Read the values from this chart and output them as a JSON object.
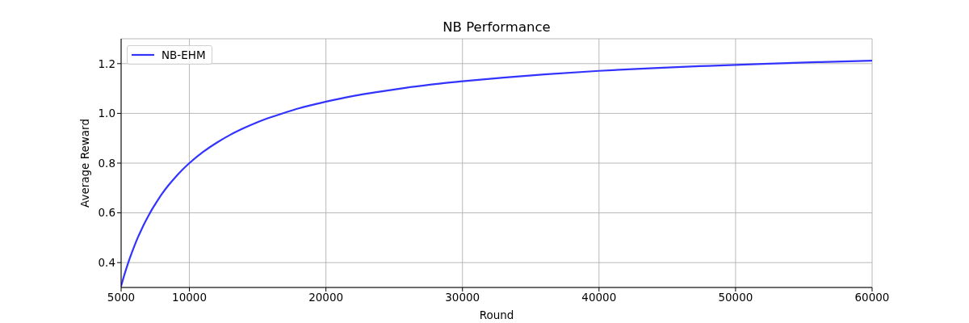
{
  "chart_data": {
    "type": "line",
    "title": "NB Performance",
    "xlabel": "Round",
    "ylabel": "Average Reward",
    "x": [
      5000,
      5250,
      5500,
      5750,
      6000,
      6250,
      6500,
      6750,
      7000,
      7250,
      7500,
      8000,
      8500,
      9000,
      9500,
      10000,
      11000,
      12000,
      13000,
      14000,
      15000,
      16000,
      17000,
      18000,
      20000,
      22000,
      24000,
      26000,
      28000,
      30000,
      33000,
      36000,
      40000,
      44000,
      48000,
      52000,
      56000,
      60000
    ],
    "series": [
      {
        "name": "NB-EHM",
        "color": "#3333ff",
        "values": [
          0.306,
          0.353,
          0.396,
          0.435,
          0.471,
          0.504,
          0.534,
          0.562,
          0.588,
          0.613,
          0.635,
          0.677,
          0.713,
          0.745,
          0.774,
          0.8,
          0.845,
          0.882,
          0.914,
          0.941,
          0.965,
          0.985,
          1.003,
          1.02,
          1.047,
          1.07,
          1.088,
          1.104,
          1.118,
          1.129,
          1.144,
          1.157,
          1.171,
          1.182,
          1.191,
          1.199,
          1.206,
          1.212
        ]
      }
    ],
    "xlim": [
      5000,
      60000
    ],
    "xticks": [
      5000,
      10000,
      20000,
      30000,
      40000,
      50000,
      60000
    ],
    "ylim": [
      0.3,
      1.3
    ],
    "yticks": [
      0.4,
      0.6,
      0.8,
      {
        "value": 1.0,
        "label": "1.0"
      },
      1.2
    ],
    "grid": true,
    "legend": "top left",
    "marker": "none",
    "line_style": "solid"
  }
}
